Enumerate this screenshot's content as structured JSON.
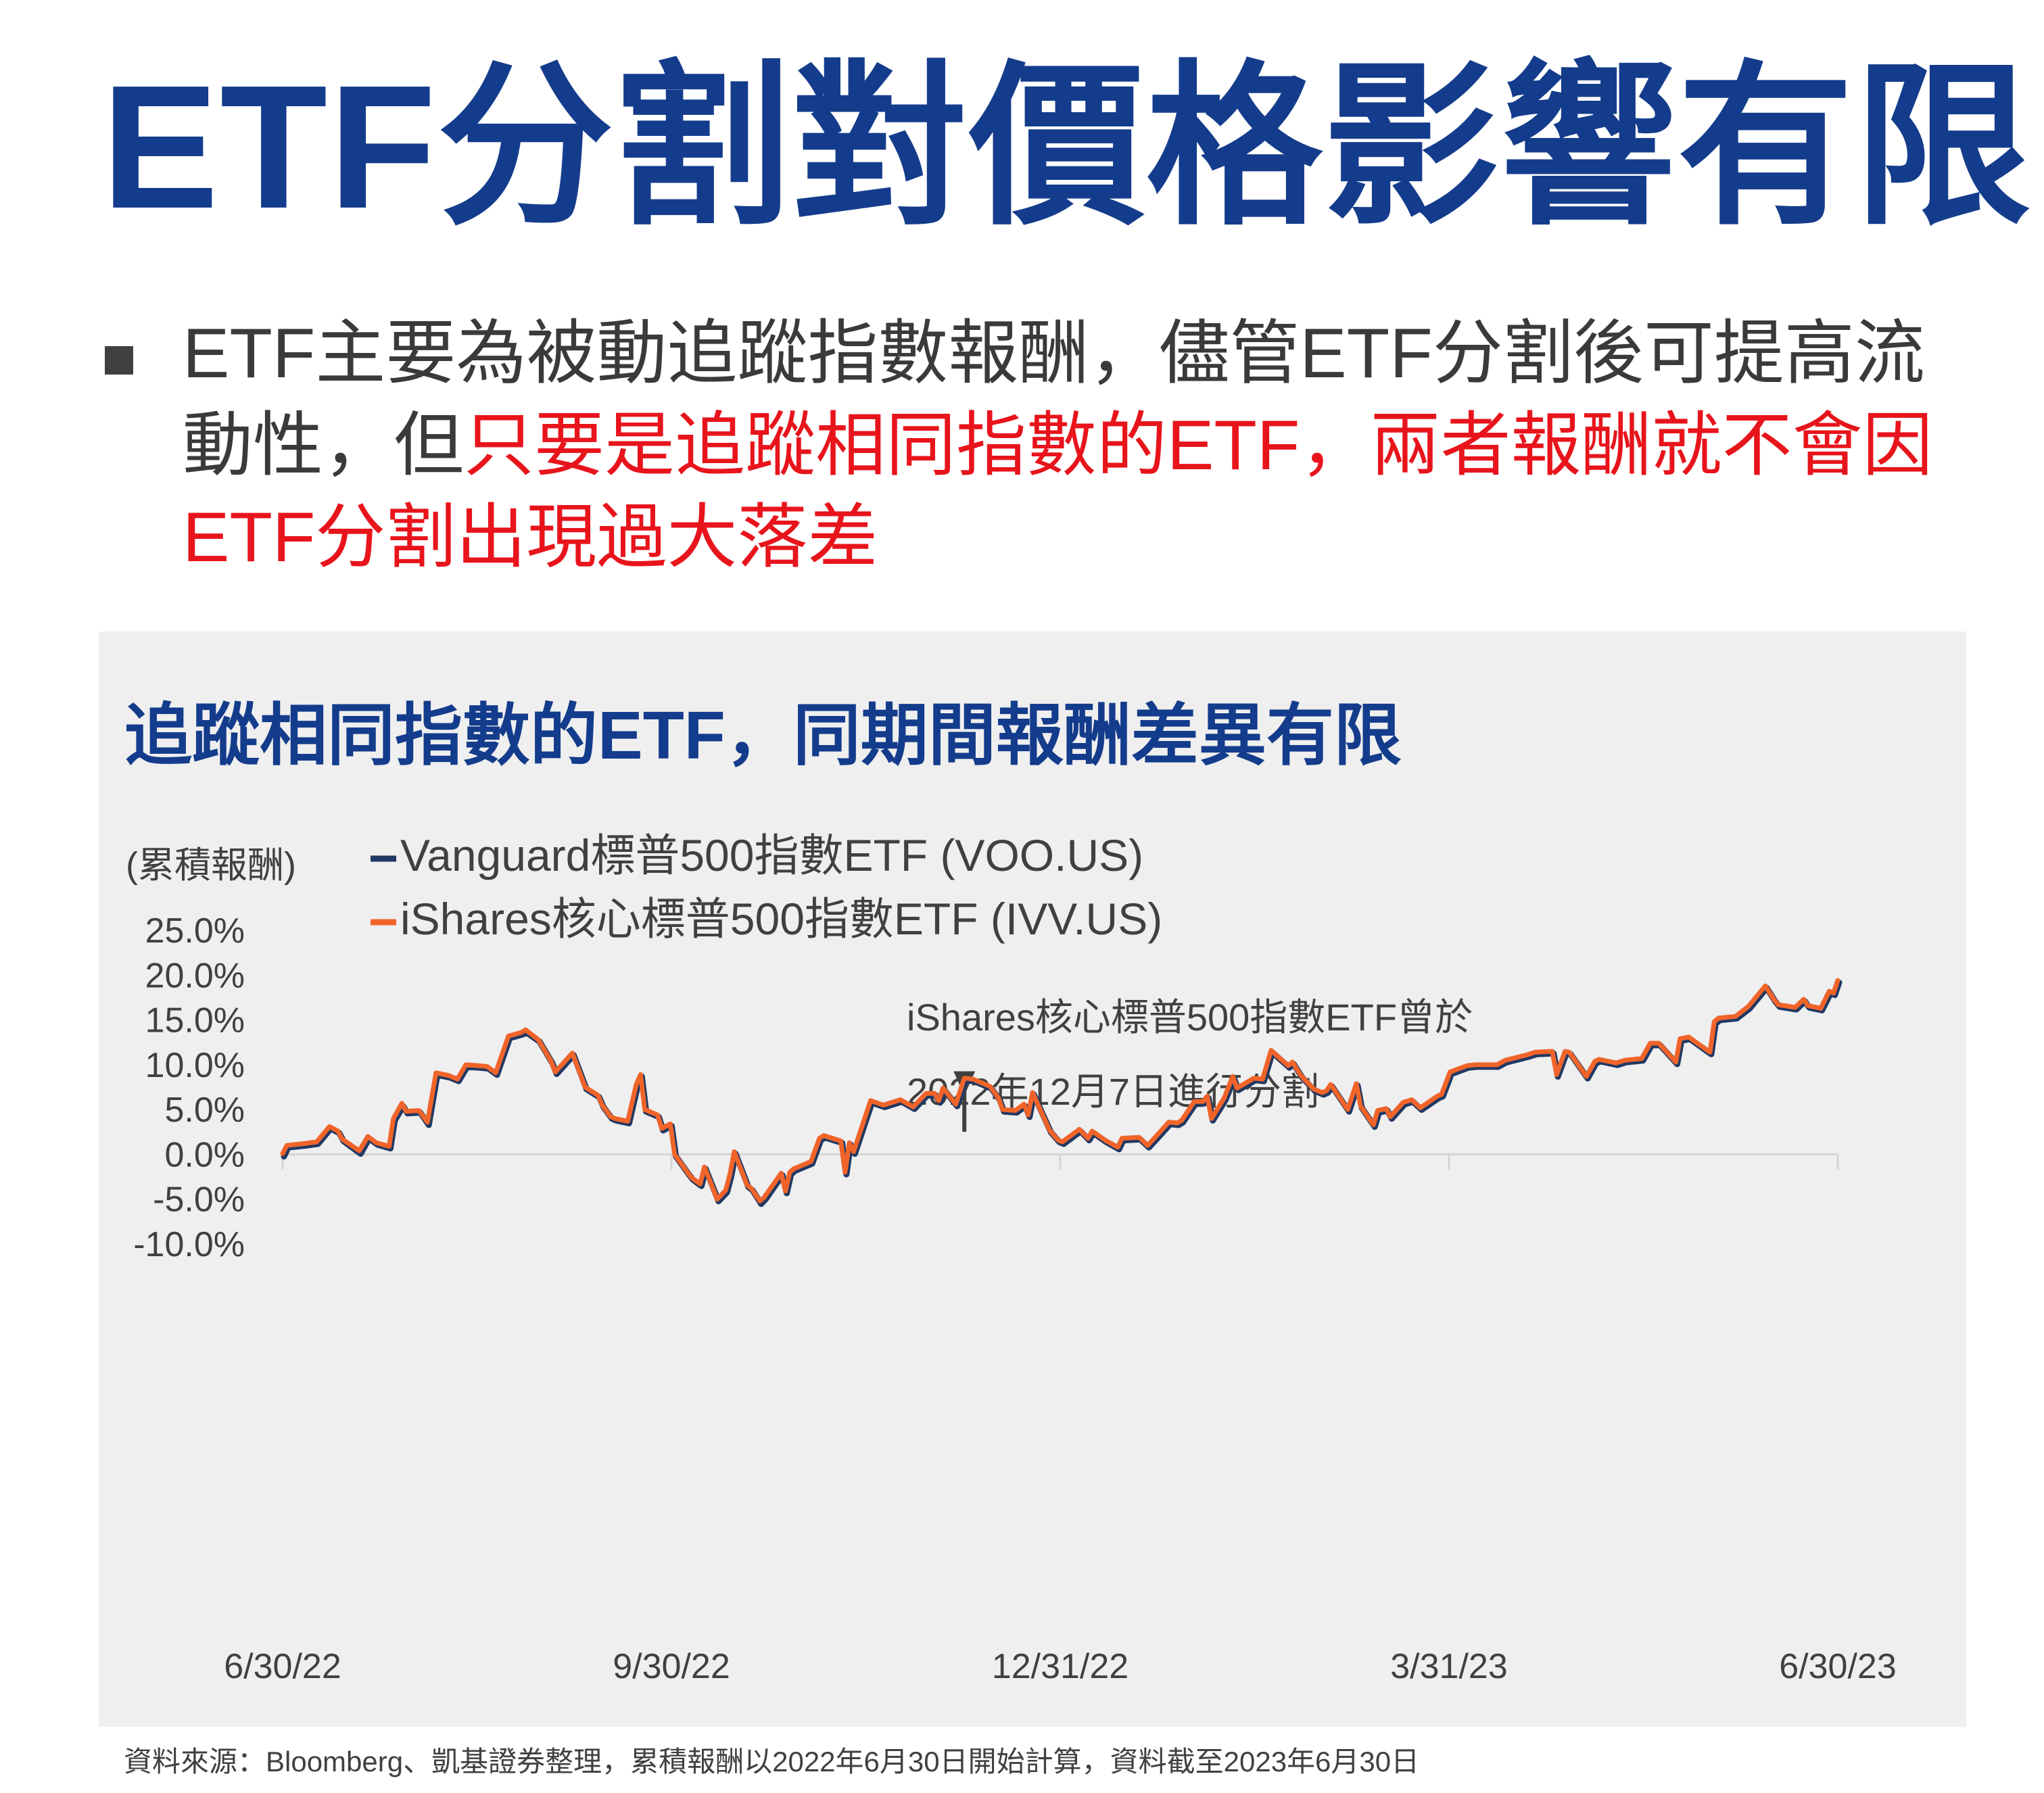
{
  "title": "ETF分割對價格影響有限",
  "bullet": {
    "part1": "ETF主要為被動追蹤指數報酬，儘管ETF分割後可提高流動性，但",
    "part2": "只要是追蹤相同指數的ETF，兩者報酬就不會因ETF分割出現過大落差"
  },
  "colors": {
    "title": "#143c8c",
    "text": "#3a3a3a",
    "highlight": "#e8141c",
    "panel": "#efefef",
    "voo": "#1f3864",
    "ivv": "#f0642a"
  },
  "chart_title": "追蹤相同指數的ETF，同期間報酬差異有限",
  "source": "資料來源：Bloomberg、凱基證券整理，累積報酬以2022年6月30日開始計算，資料截至2023年6月30日",
  "chart_data": {
    "type": "line",
    "ylabel": "(累積報酬)",
    "ylim": [
      -10,
      25
    ],
    "yticks": [
      "25.0%",
      "20.0%",
      "15.0%",
      "10.0%",
      "5.0%",
      "0.0%",
      "-5.0%",
      "-10.0%"
    ],
    "xlim": [
      "2022-06-30",
      "2023-06-30"
    ],
    "xticks": [
      "6/30/22",
      "9/30/22",
      "12/31/22",
      "3/31/23",
      "6/30/23"
    ],
    "grid": false,
    "legend": "top-left",
    "annotation": {
      "lines": [
        "iShares核心標普500指數ETF曾於",
        "2022年12月7日進行分割"
      ],
      "x": "2022-12-07",
      "y": 6.1
    },
    "series": [
      {
        "name": "Vanguard標普500指數ETF (VOO.US)",
        "color": "#1f3864",
        "x": [
          "2022-06-30",
          "2022-07-01",
          "2022-07-05",
          "2022-07-08",
          "2022-07-11",
          "2022-07-13",
          "2022-07-14",
          "2022-07-18",
          "2022-07-20",
          "2022-07-22",
          "2022-07-25",
          "2022-07-26",
          "2022-07-28",
          "2022-07-29",
          "2022-08-01",
          "2022-08-03",
          "2022-08-05",
          "2022-08-08",
          "2022-08-10",
          "2022-08-12",
          "2022-08-15",
          "2022-08-17",
          "2022-08-19",
          "2022-08-22",
          "2022-08-25",
          "2022-08-26",
          "2022-08-29",
          "2022-09-01",
          "2022-09-02",
          "2022-09-06",
          "2022-09-09",
          "2022-09-12",
          "2022-09-13",
          "2022-09-15",
          "2022-09-16",
          "2022-09-19",
          "2022-09-21",
          "2022-09-22",
          "2022-09-23",
          "2022-09-26",
          "2022-09-27",
          "2022-09-29",
          "2022-09-30",
          "2022-10-03",
          "2022-10-04",
          "2022-10-06",
          "2022-10-07",
          "2022-10-10",
          "2022-10-12",
          "2022-10-13",
          "2022-10-14",
          "2022-10-17",
          "2022-10-18",
          "2022-10-20",
          "2022-10-21",
          "2022-10-25",
          "2022-10-26",
          "2022-10-27",
          "2022-10-28",
          "2022-11-01",
          "2022-11-03",
          "2022-11-04",
          "2022-11-08",
          "2022-11-09",
          "2022-11-10",
          "2022-11-11",
          "2022-11-15",
          "2022-11-18",
          "2022-11-22",
          "2022-11-25",
          "2022-11-28",
          "2022-11-30",
          "2022-12-01",
          "2022-12-02",
          "2022-12-05",
          "2022-12-07",
          "2022-12-09",
          "2022-12-13",
          "2022-12-15",
          "2022-12-16",
          "2022-12-19",
          "2022-12-21",
          "2022-12-22",
          "2022-12-23",
          "2022-12-27",
          "2022-12-29",
          "2022-12-30",
          "2023-01-03",
          "2023-01-05",
          "2023-01-06",
          "2023-01-09",
          "2023-01-12",
          "2023-01-13",
          "2023-01-17",
          "2023-01-19",
          "2023-01-20",
          "2023-01-24",
          "2023-01-26",
          "2023-01-27",
          "2023-01-30",
          "2023-02-01",
          "2023-02-02",
          "2023-02-03",
          "2023-02-06",
          "2023-02-08",
          "2023-02-09",
          "2023-02-13",
          "2023-02-15",
          "2023-02-17",
          "2023-02-21",
          "2023-02-22",
          "2023-02-24",
          "2023-02-27",
          "2023-03-01",
          "2023-03-02",
          "2023-03-03",
          "2023-03-07",
          "2023-03-09",
          "2023-03-10",
          "2023-03-13",
          "2023-03-14",
          "2023-03-16",
          "2023-03-17",
          "2023-03-20",
          "2023-03-22",
          "2023-03-24",
          "2023-03-28",
          "2023-03-29",
          "2023-03-31",
          "2023-04-04",
          "2023-04-06",
          "2023-04-11",
          "2023-04-13",
          "2023-04-18",
          "2023-04-20",
          "2023-04-24",
          "2023-04-25",
          "2023-04-27",
          "2023-04-28",
          "2023-05-02",
          "2023-05-04",
          "2023-05-05",
          "2023-05-09",
          "2023-05-11",
          "2023-05-15",
          "2023-05-17",
          "2023-05-19",
          "2023-05-23",
          "2023-05-24",
          "2023-05-26",
          "2023-05-31",
          "2023-06-01",
          "2023-06-02",
          "2023-06-06",
          "2023-06-09",
          "2023-06-13",
          "2023-06-15",
          "2023-06-16",
          "2023-06-20",
          "2023-06-22",
          "2023-06-23",
          "2023-06-26",
          "2023-06-28",
          "2023-06-29",
          "2023-06-30"
        ],
        "values": [
          0.0,
          1.0,
          1.2,
          1.4,
          3.1,
          2.6,
          1.7,
          0.3,
          2.0,
          1.3,
          0.9,
          4.0,
          5.6,
          4.8,
          4.9,
          3.5,
          9.1,
          8.8,
          8.4,
          10.0,
          9.9,
          9.8,
          9.1,
          13.2,
          13.6,
          13.8,
          12.8,
          10.4,
          9.2,
          11.3,
          7.5,
          6.6,
          5.5,
          4.2,
          4.0,
          3.7,
          7.8,
          8.9,
          5.0,
          4.4,
          2.9,
          3.4,
          0.0,
          -2.0,
          -2.6,
          -3.3,
          -1.4,
          -5.0,
          -4.0,
          -2.2,
          0.3,
          -3.4,
          -3.8,
          -5.3,
          -4.8,
          -2.1,
          -4.1,
          -2.0,
          -1.6,
          -0.8,
          1.8,
          2.1,
          1.5,
          -2.0,
          1.3,
          0.3,
          6.0,
          5.5,
          6.1,
          5.3,
          6.8,
          6.8,
          6.0,
          7.4,
          5.6,
          8.5,
          8.4,
          7.6,
          6.3,
          5.0,
          4.9,
          5.6,
          4.4,
          6.9,
          2.7,
          1.6,
          1.4,
          2.8,
          1.8,
          2.6,
          1.6,
          0.8,
          1.8,
          1.9,
          1.0,
          1.5,
          3.6,
          3.5,
          3.8,
          5.9,
          5.9,
          6.5,
          4.0,
          6.3,
          8.7,
          7.4,
          8.5,
          8.4,
          11.6,
          9.9,
          10.3,
          8.8,
          7.3,
          6.9,
          7.1,
          7.8,
          5.0,
          7.9,
          5.4,
          3.3,
          4.9,
          5.1,
          4.2,
          5.8,
          6.1,
          5.2,
          6.5,
          6.7,
          9.2,
          9.9,
          10.0,
          10.0,
          10.5,
          11.1,
          11.4,
          11.5,
          8.9,
          11.5,
          11.4,
          8.7,
          10.4,
          10.6,
          10.2,
          10.5,
          10.7,
          12.4,
          12.4,
          10.3,
          12.9,
          13.1,
          11.4,
          14.8,
          15.2,
          15.4,
          16.5,
          18.8,
          17.3,
          16.7,
          16.4,
          17.3,
          16.6,
          16.3,
          18.2,
          18.0,
          19.4
        ]
      },
      {
        "name": "iShares核心標普500指數ETF (IVV.US)",
        "color": "#f0642a",
        "x": [
          "2022-06-30",
          "2022-07-01",
          "2022-07-05",
          "2022-07-08",
          "2022-07-11",
          "2022-07-13",
          "2022-07-14",
          "2022-07-18",
          "2022-07-20",
          "2022-07-22",
          "2022-07-25",
          "2022-07-26",
          "2022-07-28",
          "2022-07-29",
          "2022-08-01",
          "2022-08-03",
          "2022-08-05",
          "2022-08-08",
          "2022-08-10",
          "2022-08-12",
          "2022-08-15",
          "2022-08-17",
          "2022-08-19",
          "2022-08-22",
          "2022-08-25",
          "2022-08-26",
          "2022-08-29",
          "2022-09-01",
          "2022-09-02",
          "2022-09-06",
          "2022-09-09",
          "2022-09-12",
          "2022-09-13",
          "2022-09-15",
          "2022-09-16",
          "2022-09-19",
          "2022-09-21",
          "2022-09-22",
          "2022-09-23",
          "2022-09-26",
          "2022-09-27",
          "2022-09-29",
          "2022-09-30",
          "2022-10-03",
          "2022-10-04",
          "2022-10-06",
          "2022-10-07",
          "2022-10-10",
          "2022-10-12",
          "2022-10-13",
          "2022-10-14",
          "2022-10-17",
          "2022-10-18",
          "2022-10-20",
          "2022-10-21",
          "2022-10-25",
          "2022-10-26",
          "2022-10-27",
          "2022-10-28",
          "2022-11-01",
          "2022-11-03",
          "2022-11-04",
          "2022-11-08",
          "2022-11-09",
          "2022-11-10",
          "2022-11-11",
          "2022-11-15",
          "2022-11-18",
          "2022-11-22",
          "2022-11-25",
          "2022-11-28",
          "2022-11-30",
          "2022-12-01",
          "2022-12-02",
          "2022-12-05",
          "2022-12-07",
          "2022-12-09",
          "2022-12-13",
          "2022-12-15",
          "2022-12-16",
          "2022-12-19",
          "2022-12-21",
          "2022-12-22",
          "2022-12-23",
          "2022-12-27",
          "2022-12-29",
          "2022-12-30",
          "2023-01-03",
          "2023-01-05",
          "2023-01-06",
          "2023-01-09",
          "2023-01-12",
          "2023-01-13",
          "2023-01-17",
          "2023-01-19",
          "2023-01-20",
          "2023-01-24",
          "2023-01-26",
          "2023-01-27",
          "2023-01-30",
          "2023-02-01",
          "2023-02-02",
          "2023-02-03",
          "2023-02-06",
          "2023-02-08",
          "2023-02-09",
          "2023-02-13",
          "2023-02-15",
          "2023-02-17",
          "2023-02-21",
          "2023-02-22",
          "2023-02-24",
          "2023-02-27",
          "2023-03-01",
          "2023-03-02",
          "2023-03-03",
          "2023-03-07",
          "2023-03-09",
          "2023-03-10",
          "2023-03-13",
          "2023-03-14",
          "2023-03-16",
          "2023-03-17",
          "2023-03-20",
          "2023-03-22",
          "2023-03-24",
          "2023-03-28",
          "2023-03-29",
          "2023-03-31",
          "2023-04-04",
          "2023-04-06",
          "2023-04-11",
          "2023-04-13",
          "2023-04-18",
          "2023-04-20",
          "2023-04-24",
          "2023-04-25",
          "2023-04-27",
          "2023-04-28",
          "2023-05-02",
          "2023-05-04",
          "2023-05-05",
          "2023-05-09",
          "2023-05-11",
          "2023-05-15",
          "2023-05-17",
          "2023-05-19",
          "2023-05-23",
          "2023-05-24",
          "2023-05-26",
          "2023-05-31",
          "2023-06-01",
          "2023-06-02",
          "2023-06-06",
          "2023-06-09",
          "2023-06-13",
          "2023-06-15",
          "2023-06-16",
          "2023-06-20",
          "2023-06-22",
          "2023-06-23",
          "2023-06-26",
          "2023-06-28",
          "2023-06-29",
          "2023-06-30"
        ],
        "values": [
          0.1,
          1.0,
          1.2,
          1.4,
          3.1,
          2.6,
          1.7,
          0.4,
          2.0,
          1.3,
          0.9,
          4.0,
          5.7,
          4.8,
          4.9,
          3.6,
          9.1,
          8.8,
          8.4,
          10.0,
          9.9,
          9.8,
          9.1,
          13.2,
          13.6,
          13.9,
          12.8,
          10.4,
          9.2,
          11.3,
          7.5,
          6.6,
          5.5,
          4.2,
          4.0,
          3.7,
          7.8,
          8.9,
          5.0,
          4.4,
          2.9,
          3.4,
          0.0,
          -2.0,
          -2.6,
          -3.3,
          -1.4,
          -5.0,
          -4.0,
          -2.2,
          0.3,
          -3.4,
          -3.8,
          -5.2,
          -4.8,
          -2.1,
          -4.1,
          -2.0,
          -1.6,
          -0.8,
          1.8,
          2.1,
          1.5,
          -2.0,
          1.3,
          0.3,
          6.0,
          5.5,
          6.1,
          5.3,
          6.8,
          6.8,
          6.0,
          7.4,
          5.6,
          8.5,
          8.4,
          7.6,
          6.3,
          5.0,
          4.9,
          5.6,
          4.4,
          6.9,
          2.7,
          1.6,
          1.4,
          2.8,
          1.8,
          2.6,
          1.6,
          0.8,
          1.8,
          1.9,
          1.0,
          1.5,
          3.6,
          3.5,
          3.8,
          5.9,
          5.9,
          6.5,
          4.0,
          6.3,
          8.7,
          7.4,
          8.5,
          8.4,
          11.6,
          9.9,
          10.3,
          8.8,
          7.3,
          6.9,
          7.1,
          7.8,
          5.0,
          7.9,
          5.4,
          3.3,
          4.9,
          5.1,
          4.2,
          5.8,
          6.1,
          5.2,
          6.5,
          6.7,
          9.2,
          9.9,
          10.0,
          10.0,
          10.5,
          11.1,
          11.4,
          11.5,
          8.9,
          11.5,
          11.4,
          8.7,
          10.4,
          10.6,
          10.2,
          10.5,
          10.7,
          12.4,
          12.4,
          10.3,
          12.9,
          13.1,
          11.4,
          14.8,
          15.2,
          15.4,
          16.5,
          18.8,
          17.3,
          16.7,
          16.4,
          17.3,
          16.6,
          16.3,
          18.2,
          18.0,
          19.4
        ]
      }
    ]
  }
}
